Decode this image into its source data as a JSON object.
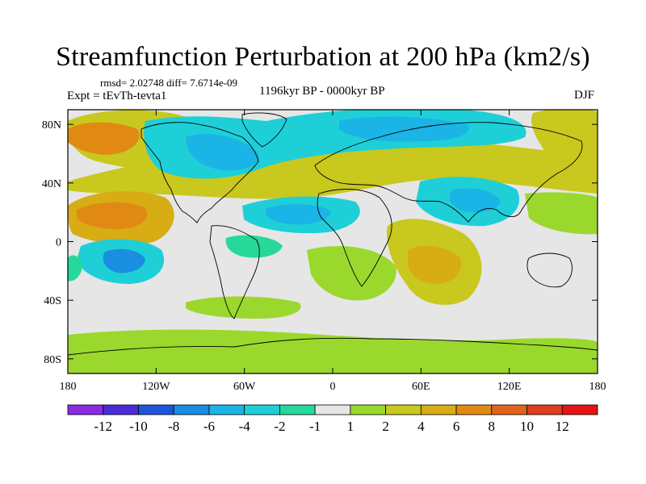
{
  "title": "Streamfunction Perturbation at 200 hPa (km2/s)",
  "subtitle_rmsd": "rmsd= 2.02748 diff= 7.6714e-09",
  "subtitle_expt": "Expt = tEvTh-tevta1",
  "subtitle_period": "1196kyr BP - 0000kyr BP",
  "subtitle_season": "DJF",
  "map": {
    "lon_range": [
      -180,
      180
    ],
    "lat_range": [
      -90,
      90
    ],
    "lon_ticks": [
      {
        "value": -180,
        "label": "180"
      },
      {
        "value": -120,
        "label": "120W"
      },
      {
        "value": -60,
        "label": "60W"
      },
      {
        "value": 0,
        "label": "0"
      },
      {
        "value": 60,
        "label": "60E"
      },
      {
        "value": 120,
        "label": "120E"
      },
      {
        "value": 180,
        "label": "180"
      }
    ],
    "lat_ticks": [
      {
        "value": 80,
        "label": "80N"
      },
      {
        "value": 40,
        "label": "40N"
      },
      {
        "value": 0,
        "label": "0"
      },
      {
        "value": -40,
        "label": "40S"
      },
      {
        "value": -80,
        "label": "80S"
      }
    ],
    "background_color": "#e6e6e6",
    "coast_color": "#000000"
  },
  "colorbar": {
    "colors": [
      "#8a2be2",
      "#4b2bd6",
      "#1f55d8",
      "#1a8ee0",
      "#1ab4e6",
      "#1ecfd8",
      "#26d99a",
      "#e6e6e6",
      "#9ad82e",
      "#c8c81e",
      "#d8ac14",
      "#e08a14",
      "#e0641e",
      "#e03c1e",
      "#e61414"
    ],
    "labels": [
      "-12",
      "-10",
      "-8",
      "-6",
      "-4",
      "-2",
      "-1",
      "1",
      "2",
      "4",
      "6",
      "8",
      "10",
      "12"
    ]
  },
  "colors": {
    "pos_1": "#9ad82e",
    "pos_2": "#c8c81e",
    "pos_3": "#d8ac14",
    "pos_4": "#e08a14",
    "pos_5": "#e0641e",
    "neg_1": "#26d99a",
    "neg_2": "#1ecfd8",
    "neg_3": "#1ab4e6",
    "neg_4": "#1a8ee0"
  }
}
